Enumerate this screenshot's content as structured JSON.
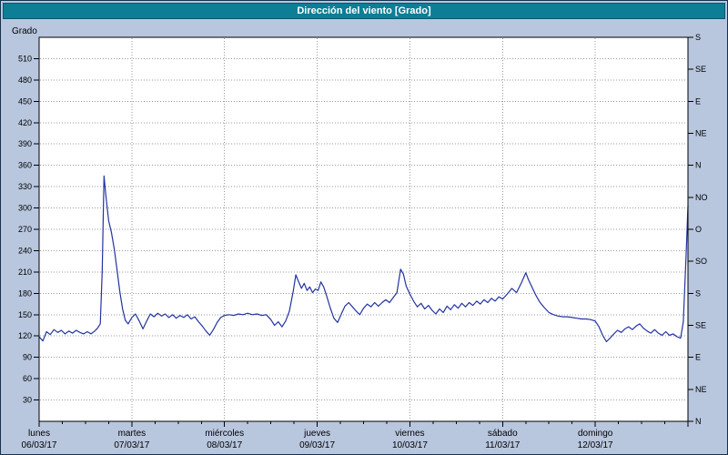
{
  "window": {
    "title": "Dirección del viento [Grado]"
  },
  "colors": {
    "frame_bg": "#b8c6de",
    "frame_border": "#16324f",
    "title_bar_bg": "#0d7e96",
    "title_bar_border": "#09566b",
    "title_text": "#ffffff",
    "plot_bg": "#ffffff",
    "plot_border": "#000000",
    "grid": "#9a9a9a",
    "axis_text": "#000000",
    "series_line": "#2333a0"
  },
  "chart_data": {
    "type": "line",
    "title": "Dirección del viento [Grado]",
    "ylabel": "Grado",
    "ylim": [
      0,
      540
    ],
    "x_span_days": 7,
    "grid": {
      "horizontal_step": 30,
      "vertical": "day-boundaries",
      "style": "dotted"
    },
    "y_axis_left": {
      "label": "Grado",
      "tick_step": 30,
      "ticks": [
        30,
        60,
        90,
        120,
        150,
        180,
        210,
        240,
        270,
        300,
        330,
        360,
        390,
        420,
        450,
        480,
        510
      ]
    },
    "y_axis_right": {
      "ticks": [
        {
          "value": 0,
          "label": "N"
        },
        {
          "value": 45,
          "label": "NE"
        },
        {
          "value": 90,
          "label": "E"
        },
        {
          "value": 135,
          "label": "SE"
        },
        {
          "value": 180,
          "label": "S"
        },
        {
          "value": 225,
          "label": "SO"
        },
        {
          "value": 270,
          "label": "O"
        },
        {
          "value": 315,
          "label": "NO"
        },
        {
          "value": 360,
          "label": "N"
        },
        {
          "value": 405,
          "label": "NE"
        },
        {
          "value": 450,
          "label": "E"
        },
        {
          "value": 495,
          "label": "SE"
        },
        {
          "value": 540,
          "label": "S"
        }
      ]
    },
    "x_axis": {
      "days": [
        {
          "name": "lunes",
          "date": "06/03/17"
        },
        {
          "name": "martes",
          "date": "07/03/17"
        },
        {
          "name": "miércoles",
          "date": "08/03/17"
        },
        {
          "name": "jueves",
          "date": "09/03/17"
        },
        {
          "name": "viernes",
          "date": "10/03/17"
        },
        {
          "name": "sábado",
          "date": "11/03/17"
        },
        {
          "name": "domingo",
          "date": "12/03/17"
        }
      ]
    },
    "series": [
      {
        "name": "Dirección del viento",
        "units": "Grado",
        "color": "#2333a0",
        "points": [
          [
            0.0,
            119
          ],
          [
            0.04,
            113
          ],
          [
            0.08,
            126
          ],
          [
            0.12,
            122
          ],
          [
            0.16,
            129
          ],
          [
            0.2,
            125
          ],
          [
            0.24,
            128
          ],
          [
            0.28,
            123
          ],
          [
            0.32,
            127
          ],
          [
            0.36,
            124
          ],
          [
            0.4,
            128
          ],
          [
            0.44,
            125
          ],
          [
            0.48,
            123
          ],
          [
            0.52,
            126
          ],
          [
            0.56,
            123
          ],
          [
            0.6,
            127
          ],
          [
            0.63,
            131
          ],
          [
            0.66,
            137
          ],
          [
            0.68,
            210
          ],
          [
            0.7,
            345
          ],
          [
            0.72,
            318
          ],
          [
            0.75,
            282
          ],
          [
            0.78,
            266
          ],
          [
            0.81,
            243
          ],
          [
            0.84,
            213
          ],
          [
            0.87,
            183
          ],
          [
            0.9,
            158
          ],
          [
            0.93,
            142
          ],
          [
            0.96,
            137
          ],
          [
            1.0,
            146
          ],
          [
            1.04,
            151
          ],
          [
            1.08,
            141
          ],
          [
            1.12,
            130
          ],
          [
            1.16,
            141
          ],
          [
            1.2,
            151
          ],
          [
            1.24,
            147
          ],
          [
            1.28,
            152
          ],
          [
            1.32,
            148
          ],
          [
            1.36,
            151
          ],
          [
            1.4,
            146
          ],
          [
            1.44,
            150
          ],
          [
            1.48,
            145
          ],
          [
            1.52,
            149
          ],
          [
            1.56,
            146
          ],
          [
            1.6,
            150
          ],
          [
            1.64,
            144
          ],
          [
            1.68,
            147
          ],
          [
            1.72,
            140
          ],
          [
            1.76,
            134
          ],
          [
            1.8,
            127
          ],
          [
            1.84,
            121
          ],
          [
            1.88,
            129
          ],
          [
            1.92,
            139
          ],
          [
            1.96,
            146
          ],
          [
            2.0,
            149
          ],
          [
            2.05,
            150
          ],
          [
            2.1,
            149
          ],
          [
            2.15,
            151
          ],
          [
            2.2,
            150
          ],
          [
            2.25,
            152
          ],
          [
            2.3,
            150
          ],
          [
            2.35,
            151
          ],
          [
            2.4,
            149
          ],
          [
            2.45,
            150
          ],
          [
            2.5,
            143
          ],
          [
            2.54,
            135
          ],
          [
            2.58,
            140
          ],
          [
            2.62,
            133
          ],
          [
            2.66,
            141
          ],
          [
            2.7,
            155
          ],
          [
            2.74,
            182
          ],
          [
            2.77,
            206
          ],
          [
            2.8,
            196
          ],
          [
            2.83,
            187
          ],
          [
            2.86,
            194
          ],
          [
            2.89,
            184
          ],
          [
            2.92,
            189
          ],
          [
            2.95,
            181
          ],
          [
            2.98,
            186
          ],
          [
            3.01,
            184
          ],
          [
            3.04,
            196
          ],
          [
            3.07,
            189
          ],
          [
            3.1,
            177
          ],
          [
            3.14,
            160
          ],
          [
            3.18,
            145
          ],
          [
            3.22,
            139
          ],
          [
            3.26,
            151
          ],
          [
            3.3,
            162
          ],
          [
            3.34,
            167
          ],
          [
            3.38,
            161
          ],
          [
            3.42,
            155
          ],
          [
            3.46,
            150
          ],
          [
            3.5,
            159
          ],
          [
            3.54,
            165
          ],
          [
            3.58,
            161
          ],
          [
            3.62,
            167
          ],
          [
            3.66,
            162
          ],
          [
            3.7,
            167
          ],
          [
            3.74,
            171
          ],
          [
            3.78,
            167
          ],
          [
            3.82,
            174
          ],
          [
            3.86,
            181
          ],
          [
            3.9,
            214
          ],
          [
            3.93,
            207
          ],
          [
            3.96,
            190
          ],
          [
            4.0,
            179
          ],
          [
            4.04,
            169
          ],
          [
            4.08,
            161
          ],
          [
            4.12,
            166
          ],
          [
            4.16,
            158
          ],
          [
            4.2,
            163
          ],
          [
            4.24,
            156
          ],
          [
            4.28,
            151
          ],
          [
            4.32,
            158
          ],
          [
            4.36,
            153
          ],
          [
            4.4,
            162
          ],
          [
            4.44,
            157
          ],
          [
            4.48,
            164
          ],
          [
            4.52,
            159
          ],
          [
            4.56,
            166
          ],
          [
            4.6,
            161
          ],
          [
            4.64,
            167
          ],
          [
            4.68,
            163
          ],
          [
            4.72,
            169
          ],
          [
            4.76,
            165
          ],
          [
            4.8,
            171
          ],
          [
            4.84,
            167
          ],
          [
            4.88,
            173
          ],
          [
            4.92,
            169
          ],
          [
            4.96,
            175
          ],
          [
            5.0,
            172
          ],
          [
            5.05,
            179
          ],
          [
            5.1,
            187
          ],
          [
            5.15,
            181
          ],
          [
            5.2,
            194
          ],
          [
            5.25,
            209
          ],
          [
            5.28,
            199
          ],
          [
            5.32,
            188
          ],
          [
            5.36,
            177
          ],
          [
            5.4,
            168
          ],
          [
            5.45,
            160
          ],
          [
            5.5,
            153
          ],
          [
            5.55,
            150
          ],
          [
            5.6,
            148
          ],
          [
            5.65,
            147
          ],
          [
            5.7,
            147
          ],
          [
            5.75,
            146
          ],
          [
            5.8,
            145
          ],
          [
            5.85,
            144
          ],
          [
            5.9,
            144
          ],
          [
            5.95,
            143
          ],
          [
            6.0,
            141
          ],
          [
            6.04,
            133
          ],
          [
            6.08,
            121
          ],
          [
            6.12,
            112
          ],
          [
            6.16,
            117
          ],
          [
            6.2,
            123
          ],
          [
            6.24,
            128
          ],
          [
            6.28,
            125
          ],
          [
            6.32,
            130
          ],
          [
            6.36,
            133
          ],
          [
            6.4,
            129
          ],
          [
            6.44,
            134
          ],
          [
            6.48,
            137
          ],
          [
            6.52,
            131
          ],
          [
            6.56,
            127
          ],
          [
            6.6,
            124
          ],
          [
            6.64,
            129
          ],
          [
            6.68,
            124
          ],
          [
            6.72,
            121
          ],
          [
            6.76,
            126
          ],
          [
            6.8,
            121
          ],
          [
            6.84,
            123
          ],
          [
            6.88,
            119
          ],
          [
            6.92,
            117
          ],
          [
            6.95,
            140
          ],
          [
            6.98,
            235
          ],
          [
            7.0,
            303
          ]
        ]
      }
    ]
  }
}
